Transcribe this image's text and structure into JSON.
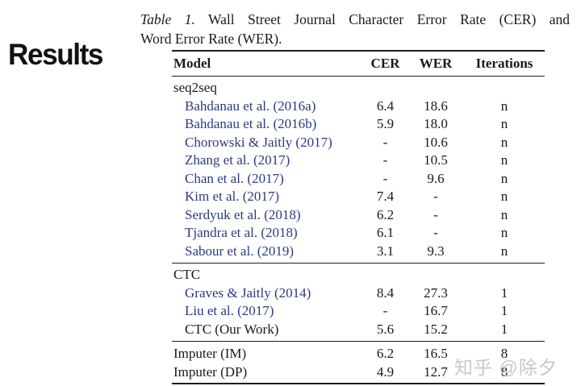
{
  "heading": "Results",
  "caption": {
    "label": "Table 1.",
    "line1": "Wall Street Journal Character Error Rate (CER) and",
    "line2": "Word Error Rate (WER)."
  },
  "table": {
    "headers": [
      "Model",
      "CER",
      "WER",
      "Iterations"
    ],
    "sections": [
      {
        "name": "seq2seq",
        "rows": [
          {
            "model": "Bahdanau et al. (2016a)",
            "cer": "6.4",
            "wer": "18.6",
            "iterations": "n",
            "link": true,
            "indent": true
          },
          {
            "model": "Bahdanau et al. (2016b)",
            "cer": "5.9",
            "wer": "18.0",
            "iterations": "n",
            "link": true,
            "indent": true
          },
          {
            "model": "Chorowski & Jaitly (2017)",
            "cer": "-",
            "wer": "10.6",
            "iterations": "n",
            "link": true,
            "indent": true
          },
          {
            "model": "Zhang et al. (2017)",
            "cer": "-",
            "wer": "10.5",
            "iterations": "n",
            "link": true,
            "indent": true
          },
          {
            "model": "Chan et al. (2017)",
            "cer": "-",
            "wer": "9.6",
            "iterations": "n",
            "link": true,
            "indent": true
          },
          {
            "model": "Kim et al. (2017)",
            "cer": "7.4",
            "wer": "-",
            "iterations": "n",
            "link": true,
            "indent": true
          },
          {
            "model": "Serdyuk et al. (2018)",
            "cer": "6.2",
            "wer": "-",
            "iterations": "n",
            "link": true,
            "indent": true
          },
          {
            "model": "Tjandra et al. (2018)",
            "cer": "6.1",
            "wer": "-",
            "iterations": "n",
            "link": true,
            "indent": true
          },
          {
            "model": "Sabour et al. (2019)",
            "cer": "3.1",
            "wer": "9.3",
            "iterations": "n",
            "link": true,
            "indent": true
          }
        ]
      },
      {
        "name": "CTC",
        "rows": [
          {
            "model": "Graves & Jaitly (2014)",
            "cer": "8.4",
            "wer": "27.3",
            "iterations": "1",
            "link": true,
            "indent": true
          },
          {
            "model": "Liu et al. (2017)",
            "cer": "-",
            "wer": "16.7",
            "iterations": "1",
            "link": true,
            "indent": true
          },
          {
            "model": "CTC (Our Work)",
            "cer": "5.6",
            "wer": "15.2",
            "iterations": "1",
            "link": false,
            "indent": true
          }
        ]
      },
      {
        "name": null,
        "rows": [
          {
            "model": "Imputer (IM)",
            "cer": "6.2",
            "wer": "16.5",
            "iterations": "8",
            "link": false,
            "indent": false
          },
          {
            "model": "Imputer (DP)",
            "cer": "4.9",
            "wer": "12.7",
            "iterations": "8",
            "link": false,
            "indent": false
          }
        ]
      }
    ]
  },
  "watermark": {
    "text": "知乎 @除夕"
  },
  "colors": {
    "link": "#2d3a7e",
    "text": "#1a1a1a",
    "rule": "#1d1d1d",
    "watermark": "#c8c8c8",
    "background": "#ffffff"
  }
}
